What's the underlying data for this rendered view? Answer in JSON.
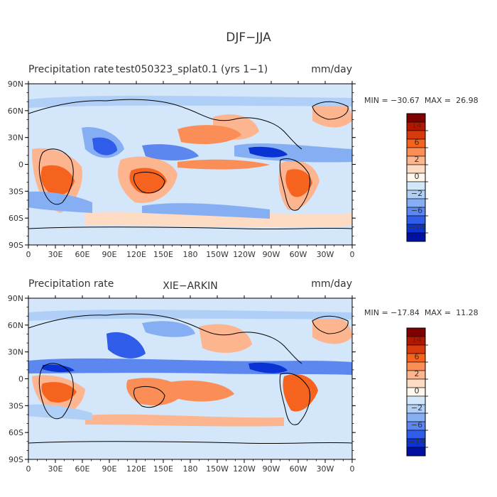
{
  "page_title": "DJF−JJA",
  "chart_data": [
    {
      "type": "heatmap",
      "left_title": "Precipitation rate",
      "center_title": "test050323_splat0.1 (yrs 1−1)",
      "units": "mm/day",
      "stats": "MIN = −30.67  MAX =  26.98",
      "x_ticks": [
        "0",
        "30E",
        "60E",
        "90E",
        "120E",
        "150E",
        "180",
        "150W",
        "120W",
        "90W",
        "60W",
        "30W",
        "0"
      ],
      "y_ticks": [
        "90N",
        "60N",
        "30N",
        "0",
        "30S",
        "60S",
        "90S"
      ],
      "xlim": [
        0,
        360
      ],
      "ylim": [
        -90,
        90
      ],
      "colorbar": {
        "colors": [
          "#7f0000",
          "#b01800",
          "#d93a0d",
          "#f5631f",
          "#fb8e56",
          "#fdb58f",
          "#fedcc4",
          "#fff6ec",
          "#d3e6fa",
          "#b0cff6",
          "#86aef2",
          "#5b87ee",
          "#2f5ce9",
          "#0a33d4",
          "#0010a0"
        ],
        "labels": [
          "14",
          "6",
          "2",
          "0",
          "−2",
          "−6",
          "−14"
        ]
      }
    },
    {
      "type": "heatmap",
      "left_title": "Precipitation rate",
      "center_title": "XIE−ARKIN",
      "units": "mm/day",
      "stats": "MIN = −17.84  MAX =  11.28",
      "x_ticks": [
        "0",
        "30E",
        "60E",
        "90E",
        "120E",
        "150E",
        "180",
        "150W",
        "120W",
        "90W",
        "60W",
        "30W",
        "0"
      ],
      "y_ticks": [
        "90N",
        "60N",
        "30N",
        "0",
        "30S",
        "60S",
        "90S"
      ],
      "xlim": [
        0,
        360
      ],
      "ylim": [
        -90,
        90
      ],
      "colorbar": {
        "colors": [
          "#7f0000",
          "#b01800",
          "#d93a0d",
          "#f5631f",
          "#fb8e56",
          "#fdb58f",
          "#fedcc4",
          "#fff6ec",
          "#d3e6fa",
          "#b0cff6",
          "#86aef2",
          "#5b87ee",
          "#2f5ce9",
          "#0a33d4",
          "#0010a0"
        ],
        "labels": [
          "14",
          "6",
          "2",
          "0",
          "−2",
          "−6",
          "−14"
        ]
      }
    }
  ]
}
